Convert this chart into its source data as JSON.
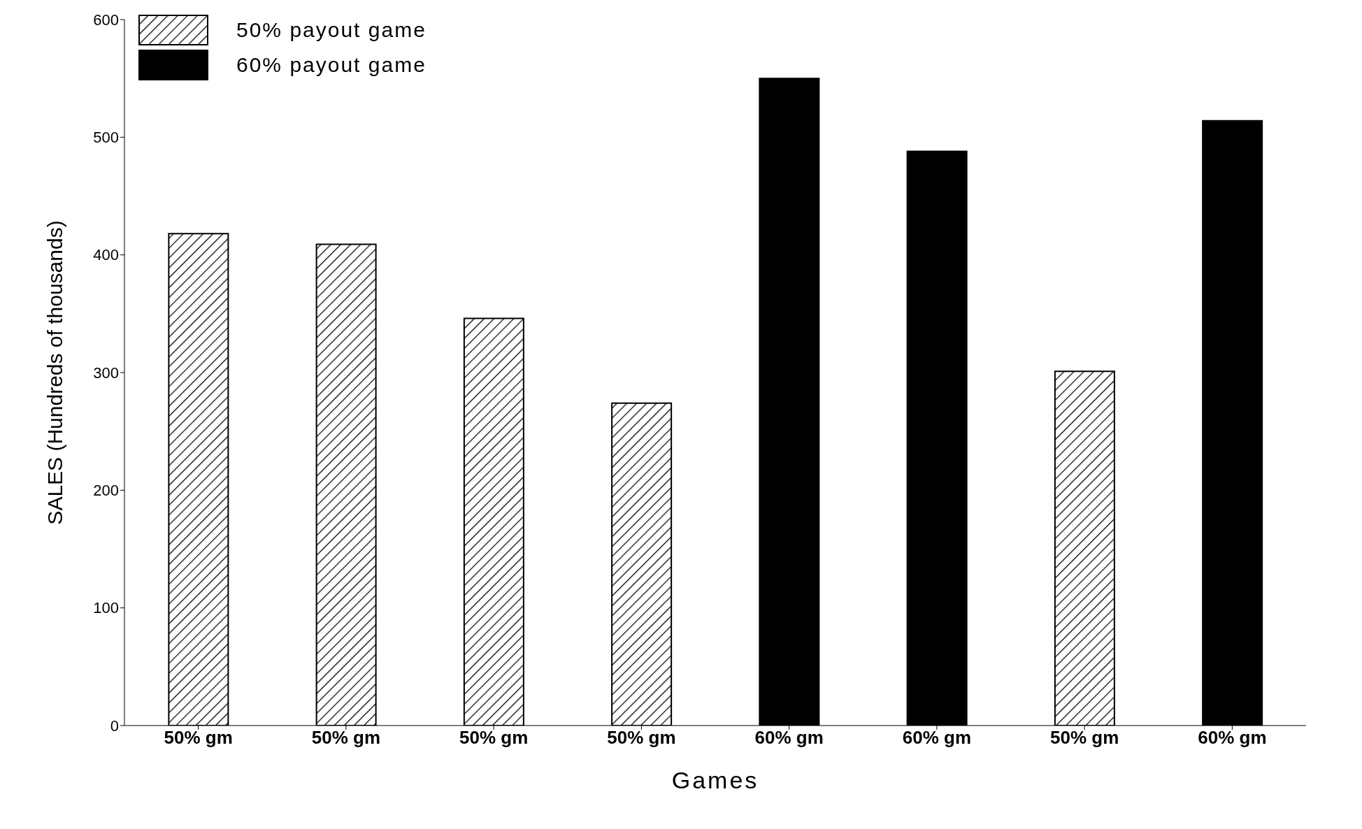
{
  "chart_data": {
    "type": "bar",
    "xlabel": "Games",
    "ylabel": "SALES (Hundreds of thousands)",
    "categories": [
      "50% gm",
      "50% gm",
      "50% gm",
      "50% gm",
      "60% gm",
      "60% gm",
      "50% gm",
      "60% gm"
    ],
    "series": [
      {
        "name": "50% payout game",
        "color": "#000000",
        "values": [
          418,
          409,
          346,
          274,
          null,
          null,
          301,
          null
        ]
      },
      {
        "name": "60% payout game",
        "color": "#000000",
        "values": [
          null,
          null,
          null,
          null,
          550,
          488,
          null,
          514
        ]
      }
    ],
    "ylim": [
      0,
      600
    ],
    "yticks": [
      0,
      100,
      200,
      300,
      400,
      500,
      600
    ],
    "legend": "top left"
  }
}
